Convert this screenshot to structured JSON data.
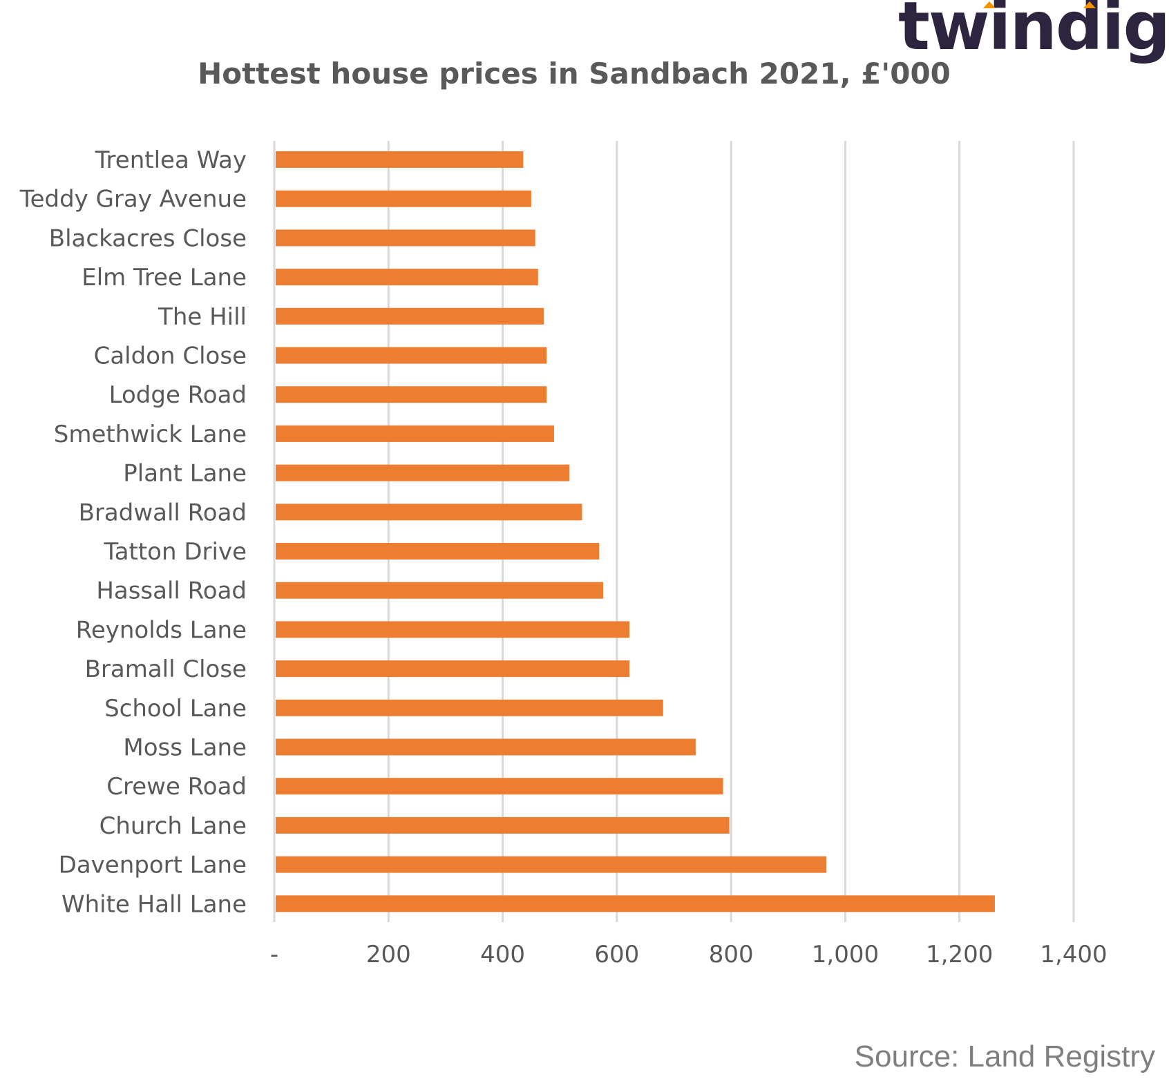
{
  "brand": {
    "logo_text": "twindig",
    "accent_color": "#f39200",
    "logo_color": "#2d2440"
  },
  "source_text": "Source: Land Registry",
  "chart_data": {
    "type": "bar",
    "orientation": "horizontal",
    "title": "Hottest house prices in Sandbach  2021, £'000",
    "xlabel": "",
    "ylabel": "",
    "categories": [
      "Trentlea Way",
      "Teddy Gray Avenue",
      "Blackacres Close",
      "Elm Tree Lane",
      "The Hill",
      "Caldon Close",
      "Lodge Road",
      "Smethwick Lane",
      "Plant Lane",
      "Bradwall Road",
      "Tatton Drive",
      "Hassall Road",
      "Reynolds Lane",
      "Bramall Close",
      "School Lane",
      "Moss Lane",
      "Crewe Road",
      "Church Lane",
      "Davenport Lane",
      "White Hall Lane"
    ],
    "values": [
      436,
      450,
      457,
      462,
      472,
      477,
      477,
      490,
      517,
      539,
      569,
      576,
      622,
      622,
      681,
      738,
      786,
      797,
      967,
      1262
    ],
    "xlim": [
      0,
      1400
    ],
    "x_ticks": [
      0,
      200,
      400,
      600,
      800,
      1000,
      1200,
      1400
    ],
    "x_tick_labels": [
      "-",
      "200",
      "400",
      "600",
      "800",
      "1,000",
      "1,200",
      "1,400"
    ],
    "bar_color": "#ed7d31",
    "grid": true,
    "gridline_color": "#d9d9d9",
    "legend": "none"
  }
}
